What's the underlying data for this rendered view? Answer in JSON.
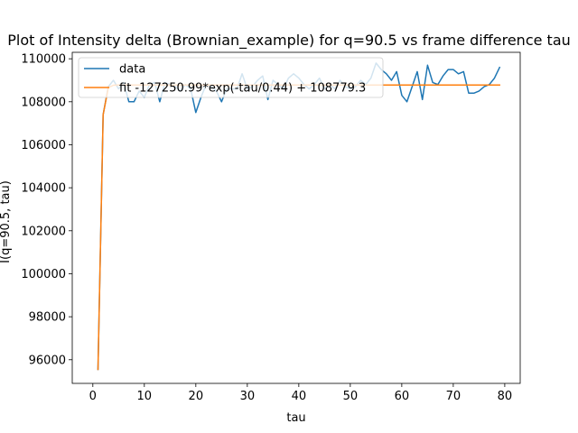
{
  "chart_data": {
    "type": "line",
    "title": "Plot of Intensity delta (Brownian_example) for q=90.5 vs frame difference tau",
    "xlabel": "tau",
    "ylabel": "I(q=90.5, tau)",
    "xlim": [
      -4,
      83
    ],
    "ylim": [
      94900,
      110300
    ],
    "xticks": [
      0,
      10,
      20,
      30,
      40,
      50,
      60,
      70,
      80
    ],
    "yticks": [
      96000,
      98000,
      100000,
      102000,
      104000,
      106000,
      108000,
      110000
    ],
    "legend_position": "top-left",
    "grid": false,
    "series": [
      {
        "name": "data",
        "color": "#1f77b4",
        "x": [
          1,
          2,
          3,
          4,
          5,
          6,
          7,
          8,
          9,
          10,
          11,
          12,
          13,
          14,
          15,
          16,
          17,
          18,
          19,
          20,
          21,
          22,
          23,
          24,
          25,
          26,
          27,
          28,
          29,
          30,
          31,
          32,
          33,
          34,
          35,
          36,
          37,
          38,
          39,
          40,
          41,
          42,
          43,
          44,
          45,
          46,
          47,
          48,
          49,
          50,
          51,
          52,
          53,
          54,
          55,
          56,
          57,
          58,
          59,
          60,
          61,
          62,
          63,
          64,
          65,
          66,
          67,
          68,
          69,
          70,
          71,
          72,
          73,
          74,
          75,
          76,
          77,
          78,
          79
        ],
        "y": [
          95550,
          107400,
          108700,
          109000,
          108600,
          108900,
          108000,
          108000,
          108500,
          108200,
          108800,
          108900,
          108000,
          108900,
          108800,
          108700,
          108500,
          108800,
          108600,
          107500,
          108200,
          108800,
          108700,
          108500,
          108000,
          108600,
          108600,
          108600,
          109300,
          108600,
          108700,
          109000,
          109200,
          108100,
          109000,
          108800,
          108600,
          109100,
          109300,
          109100,
          108800,
          108600,
          108800,
          109100,
          108600,
          108800,
          108600,
          109000,
          108700,
          108600,
          108700,
          109000,
          108800,
          109100,
          109800,
          109500,
          109300,
          109000,
          109400,
          108300,
          108000,
          108700,
          109400,
          108100,
          109700,
          108900,
          108800,
          109200,
          109500,
          109500,
          109300,
          109400,
          108400,
          108400,
          108500,
          108700,
          108800,
          109100,
          109600
        ]
      },
      {
        "name": "fit -127250.99*exp(-tau/0.44) + 108779.3",
        "color": "#ff7f0e",
        "x": [
          1,
          2,
          3,
          4,
          5,
          6,
          8,
          10,
          15,
          20,
          30,
          40,
          50,
          60,
          70,
          79
        ],
        "y": [
          95550,
          107400,
          108650,
          108770,
          108779,
          108779,
          108779,
          108779,
          108779,
          108779,
          108779,
          108779,
          108779,
          108779,
          108779,
          108779
        ]
      }
    ]
  }
}
